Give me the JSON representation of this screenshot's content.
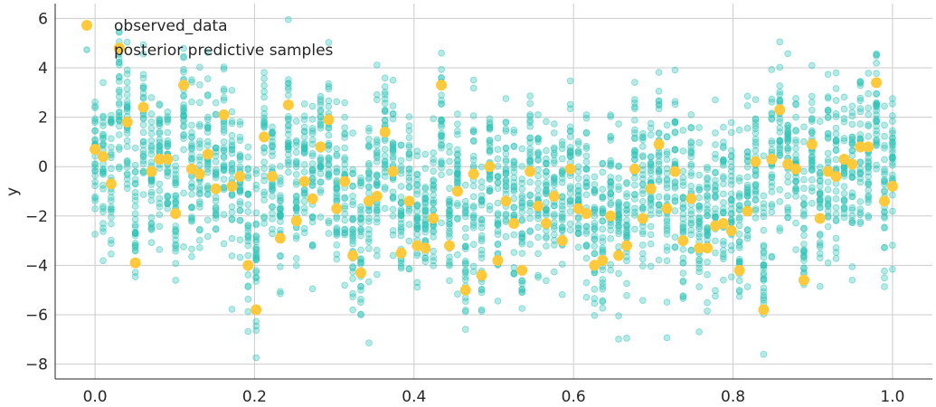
{
  "chart_data": {
    "type": "scatter",
    "title": "",
    "xlabel": "",
    "ylabel": "y",
    "xlim": [
      -0.05,
      1.05
    ],
    "ylim": [
      -8.6,
      6.6
    ],
    "xticks": [
      0.0,
      0.2,
      0.4,
      0.6,
      0.8,
      1.0
    ],
    "xtick_labels": [
      "0.0",
      "0.2",
      "0.4",
      "0.6",
      "0.8",
      "1.0"
    ],
    "yticks": [
      -8,
      -6,
      -4,
      -2,
      0,
      2,
      4,
      6
    ],
    "ytick_labels": [
      "−8",
      "−6",
      "−4",
      "−2",
      "0",
      "2",
      "4",
      "6"
    ],
    "grid": true,
    "legend_position": "top-left",
    "colors": {
      "observed": "#ffc93c",
      "samples": "#2ec4b6"
    },
    "series": [
      {
        "name": "observed_data",
        "x": [
          0.0,
          0.0101,
          0.0202,
          0.0303,
          0.0404,
          0.0505,
          0.0606,
          0.0707,
          0.0808,
          0.0909,
          0.101,
          0.1111,
          0.1212,
          0.1313,
          0.1414,
          0.1515,
          0.1616,
          0.1717,
          0.1818,
          0.1919,
          0.202,
          0.2121,
          0.2222,
          0.2323,
          0.2424,
          0.2525,
          0.2626,
          0.2727,
          0.2828,
          0.2929,
          0.303,
          0.3131,
          0.3232,
          0.3333,
          0.3434,
          0.3535,
          0.3636,
          0.3737,
          0.3838,
          0.3939,
          0.404,
          0.4141,
          0.4242,
          0.4343,
          0.4444,
          0.4545,
          0.4646,
          0.4747,
          0.4848,
          0.4949,
          0.5051,
          0.5152,
          0.5253,
          0.5354,
          0.5455,
          0.5556,
          0.5657,
          0.5758,
          0.5859,
          0.596,
          0.6061,
          0.6162,
          0.6263,
          0.6364,
          0.6465,
          0.6566,
          0.6667,
          0.6768,
          0.6869,
          0.697,
          0.7071,
          0.7172,
          0.7273,
          0.7374,
          0.7475,
          0.7576,
          0.7677,
          0.7778,
          0.7879,
          0.798,
          0.8081,
          0.8182,
          0.8283,
          0.8384,
          0.8485,
          0.8586,
          0.8687,
          0.8788,
          0.8889,
          0.899,
          0.9091,
          0.9192,
          0.9293,
          0.9394,
          0.9495,
          0.9596,
          0.9697,
          0.9798,
          0.9899,
          1.0
        ],
        "y": [
          0.7,
          0.4,
          -0.7,
          4.8,
          1.8,
          -3.9,
          2.4,
          -0.2,
          0.3,
          0.3,
          -1.9,
          3.3,
          -0.1,
          -0.3,
          0.5,
          -0.9,
          2.1,
          -0.8,
          -0.4,
          -4.0,
          -5.8,
          1.2,
          -0.4,
          -2.9,
          2.5,
          -2.2,
          -0.6,
          -1.3,
          0.8,
          1.9,
          -1.7,
          -0.6,
          -3.6,
          -4.3,
          -1.4,
          -1.2,
          1.4,
          -0.2,
          -3.5,
          -1.4,
          -3.2,
          -3.3,
          -2.1,
          3.3,
          -3.2,
          -1.0,
          -5.0,
          -0.3,
          -4.4,
          0.0,
          -3.8,
          -1.4,
          -2.3,
          -4.2,
          -0.2,
          -1.6,
          -2.3,
          -1.2,
          -3.0,
          -0.1,
          -1.7,
          -1.9,
          -4.0,
          -3.8,
          -2.0,
          -3.6,
          -3.2,
          -0.1,
          -2.1,
          -0.9,
          0.9,
          -1.7,
          -0.2,
          -3.0,
          -1.3,
          -3.3,
          -3.3,
          -2.4,
          -2.3,
          -2.6,
          -4.2,
          -1.8,
          0.2,
          -5.8,
          0.3,
          2.3,
          0.1,
          -0.1,
          -4.6,
          0.9,
          -2.1,
          -0.2,
          -0.4,
          0.3,
          0.1,
          0.8,
          0.8,
          3.4,
          -1.4,
          -0.8
        ]
      },
      {
        "name": "posterior predictive samples",
        "samples_per_x": 30,
        "spread": 1.55,
        "x": "same as observed_data"
      }
    ]
  }
}
